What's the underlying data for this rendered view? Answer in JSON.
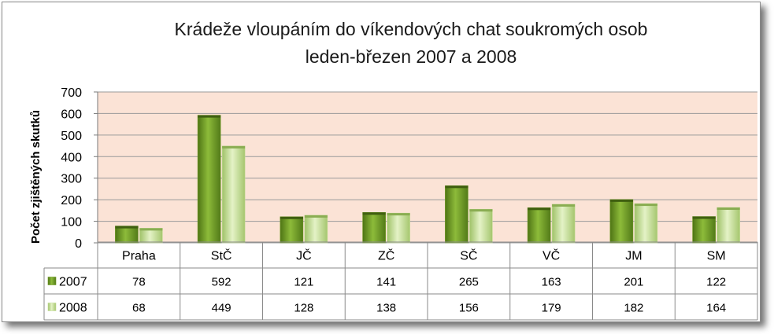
{
  "chart_data": {
    "type": "bar",
    "title": [
      "Krádeže vloupáním do víkendových chat soukromých osob",
      "leden-březen 2007 a 2008"
    ],
    "ylabel": "Počet zjištěných skutků",
    "xlabel": "",
    "ylim": [
      0,
      700
    ],
    "yticks": [
      0,
      100,
      200,
      300,
      400,
      500,
      600,
      700
    ],
    "grid": true,
    "legend": "data-table",
    "categories": [
      "Praha",
      "StČ",
      "JČ",
      "ZČ",
      "SČ",
      "VČ",
      "JM",
      "SM"
    ],
    "series": [
      {
        "name": "2007",
        "values": [
          78,
          592,
          121,
          141,
          265,
          163,
          201,
          122
        ],
        "color": "#6f9a24"
      },
      {
        "name": "2008",
        "values": [
          68,
          449,
          128,
          138,
          156,
          179,
          182,
          164
        ],
        "color": "#c5dd98"
      }
    ],
    "colors": {
      "plot_background": "#fbe3d6",
      "gridline": "#9a9a9a"
    }
  }
}
